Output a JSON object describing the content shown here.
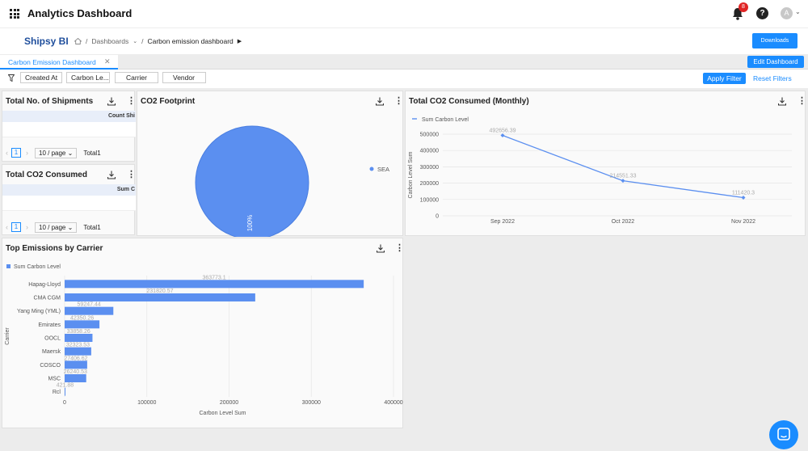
{
  "header": {
    "title": "Analytics Dashboard",
    "notification_count": "8",
    "avatar_letter": "A"
  },
  "subheader": {
    "brand": "Shipsy BI",
    "breadcrumb_root": "Dashboards",
    "breadcrumb_current": "Carbon emission dashboard",
    "downloads_label": "Downloads"
  },
  "tabs": [
    {
      "label": "Carbon Emission Dashboard",
      "active": true
    }
  ],
  "edit_dashboard_label": "Edit Dashboard",
  "filters": {
    "chips": [
      "Created At",
      "Carbon Le...",
      "Carrier",
      "Vendor"
    ],
    "apply_label": "Apply Filter",
    "reset_label": "Reset Filters"
  },
  "panels": {
    "shipments": {
      "title": "Total No. of Shipments",
      "column": "Count Shi",
      "page": "1",
      "page_size": "10 / page",
      "total": "Total1"
    },
    "co2_consumed": {
      "title": "Total CO2 Consumed",
      "column": "Sum C",
      "page": "1",
      "page_size": "10 / page",
      "total": "Total1"
    },
    "co2_footprint": {
      "title": "CO2 Footprint"
    },
    "monthly": {
      "title": "Total CO2 Consumed (Monthly)"
    },
    "top_emissions": {
      "title": "Top Emissions by Carrier"
    }
  },
  "colors": {
    "accent": "#1a8cff",
    "series": "#5b8ff0",
    "brand": "#1f4e9c",
    "badge": "#e02424"
  },
  "chart_data": [
    {
      "type": "pie",
      "title": "CO2 Footprint",
      "slices": [
        {
          "label": "SEA",
          "value": 100,
          "percent_label": "100%"
        }
      ],
      "legend": "right"
    },
    {
      "type": "line",
      "title": "Total CO2 Consumed (Monthly)",
      "series": [
        {
          "name": "Sum Carbon Level",
          "values": [
            492656.39,
            214551.33,
            111420.3
          ],
          "labels": [
            "492656.39",
            "214551.33",
            "111420.3"
          ]
        }
      ],
      "categories": [
        "Sep 2022",
        "Oct 2022",
        "Nov 2022"
      ],
      "ylabel": "Carbon Level Sum",
      "yticks": [
        "0",
        "100000",
        "200000",
        "300000",
        "400000",
        "500000"
      ],
      "ylim": [
        0,
        500000
      ],
      "legend": "top-left"
    },
    {
      "type": "bar",
      "orientation": "horizontal",
      "title": "Top Emissions by Carrier",
      "series": [
        {
          "name": "Sum Carbon Level"
        }
      ],
      "categories": [
        "Hapag-Lloyd",
        "CMA CGM",
        "Yang Ming (YML)",
        "Emirates",
        "OOCL",
        "Maersk",
        "COSCO",
        "MSC",
        "Rcl"
      ],
      "values": [
        363773.1,
        231820.57,
        59247.44,
        42350.26,
        33858.26,
        32323.53,
        27406.62,
        26240.53,
        421.88
      ],
      "value_labels": [
        "363773.1",
        "231820.57",
        "59247.44",
        "42350.26",
        "33858.26",
        "32323.53",
        "27406.62",
        "26240.53",
        "421.88"
      ],
      "xlabel": "Carbon Level Sum",
      "ylabel": "Carrier",
      "xticks": [
        "0",
        "100000",
        "200000",
        "300000",
        "400000"
      ],
      "xlim": [
        0,
        400000
      ],
      "legend": "top-left"
    }
  ]
}
